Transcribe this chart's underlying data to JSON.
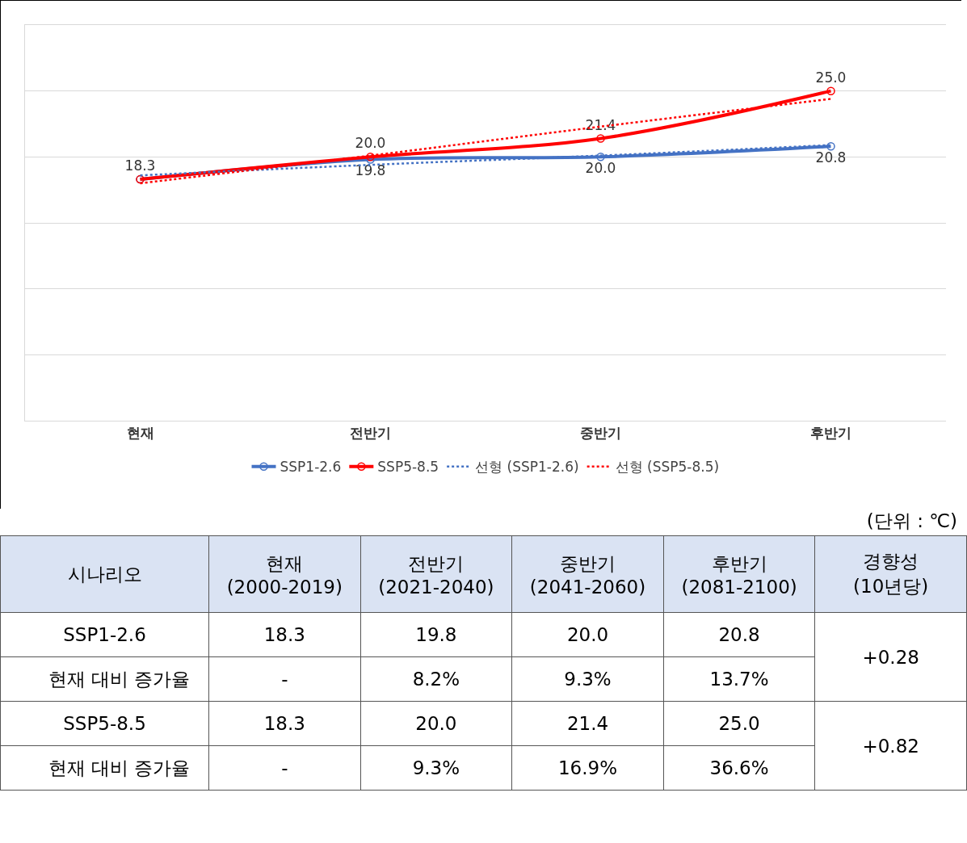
{
  "chart_data": [
    {
      "type": "line",
      "categories": [
        "현재",
        "전반기",
        "중반기",
        "후반기"
      ],
      "ylim": [
        0,
        30
      ],
      "yticks": [
        {
          "value": 0,
          "label": null
        },
        {
          "value": 5,
          "label": null
        },
        {
          "value": 10,
          "label": null
        },
        {
          "value": 15,
          "label": null
        },
        {
          "value": 20,
          "label": null
        },
        {
          "value": 25,
          "label": null
        },
        {
          "value": 30,
          "label": null
        }
      ],
      "grid": "y",
      "tick_labels": "x",
      "legend": "bottom",
      "series": [
        {
          "name": "SSP1-2.6",
          "color": "#4472c4",
          "values": [
            18.3,
            19.8,
            20.0,
            20.8
          ],
          "value_labels": [
            null,
            "19.8",
            "20.0",
            "20.8"
          ],
          "marker": "circle",
          "line_style": "solid"
        },
        {
          "name": "SSP5-8.5",
          "color": "#ff0000",
          "values": [
            18.3,
            20.0,
            21.4,
            25.0
          ],
          "value_labels": [
            "18.3",
            "20.0",
            "21.4",
            "25.0"
          ],
          "marker": "circle",
          "line_style": "solid"
        },
        {
          "name": "선형 (SSP1-2.6)",
          "color": "#4472c4",
          "values": [
            18.6,
            19.4,
            20.1,
            20.9
          ],
          "marker": "none",
          "line_style": "dotted"
        },
        {
          "name": "선형 (SSP5-8.5)",
          "color": "#ff0000",
          "values": [
            18.0,
            20.1,
            22.3,
            24.4
          ],
          "marker": "none",
          "line_style": "dotted"
        }
      ]
    },
    {
      "type": "other",
      "ylabel": "시나리오",
      "annotations": [
        "(단위 : ℃)"
      ],
      "categories": [
        "현재 (2000-2019)",
        "전반기 (2021-2040)",
        "중반기 (2041-2060)",
        "후반기 (2081-2100)",
        "경향성 (10년당)"
      ],
      "y_categories": [
        "SSP1-2.6",
        "현재 대비 증가율",
        "SSP5-8.5",
        "현재 대비 증가율"
      ],
      "cell_labels": [
        [
          "18.3",
          "19.8",
          "20.0",
          "20.8",
          "+0.28"
        ],
        [
          "-",
          "8.2%",
          "9.3%",
          "13.7%",
          null
        ],
        [
          "18.3",
          "20.0",
          "21.4",
          "25.0",
          "+0.82"
        ],
        [
          "-",
          "9.3%",
          "16.9%",
          "36.6%",
          null
        ]
      ]
    }
  ]
}
